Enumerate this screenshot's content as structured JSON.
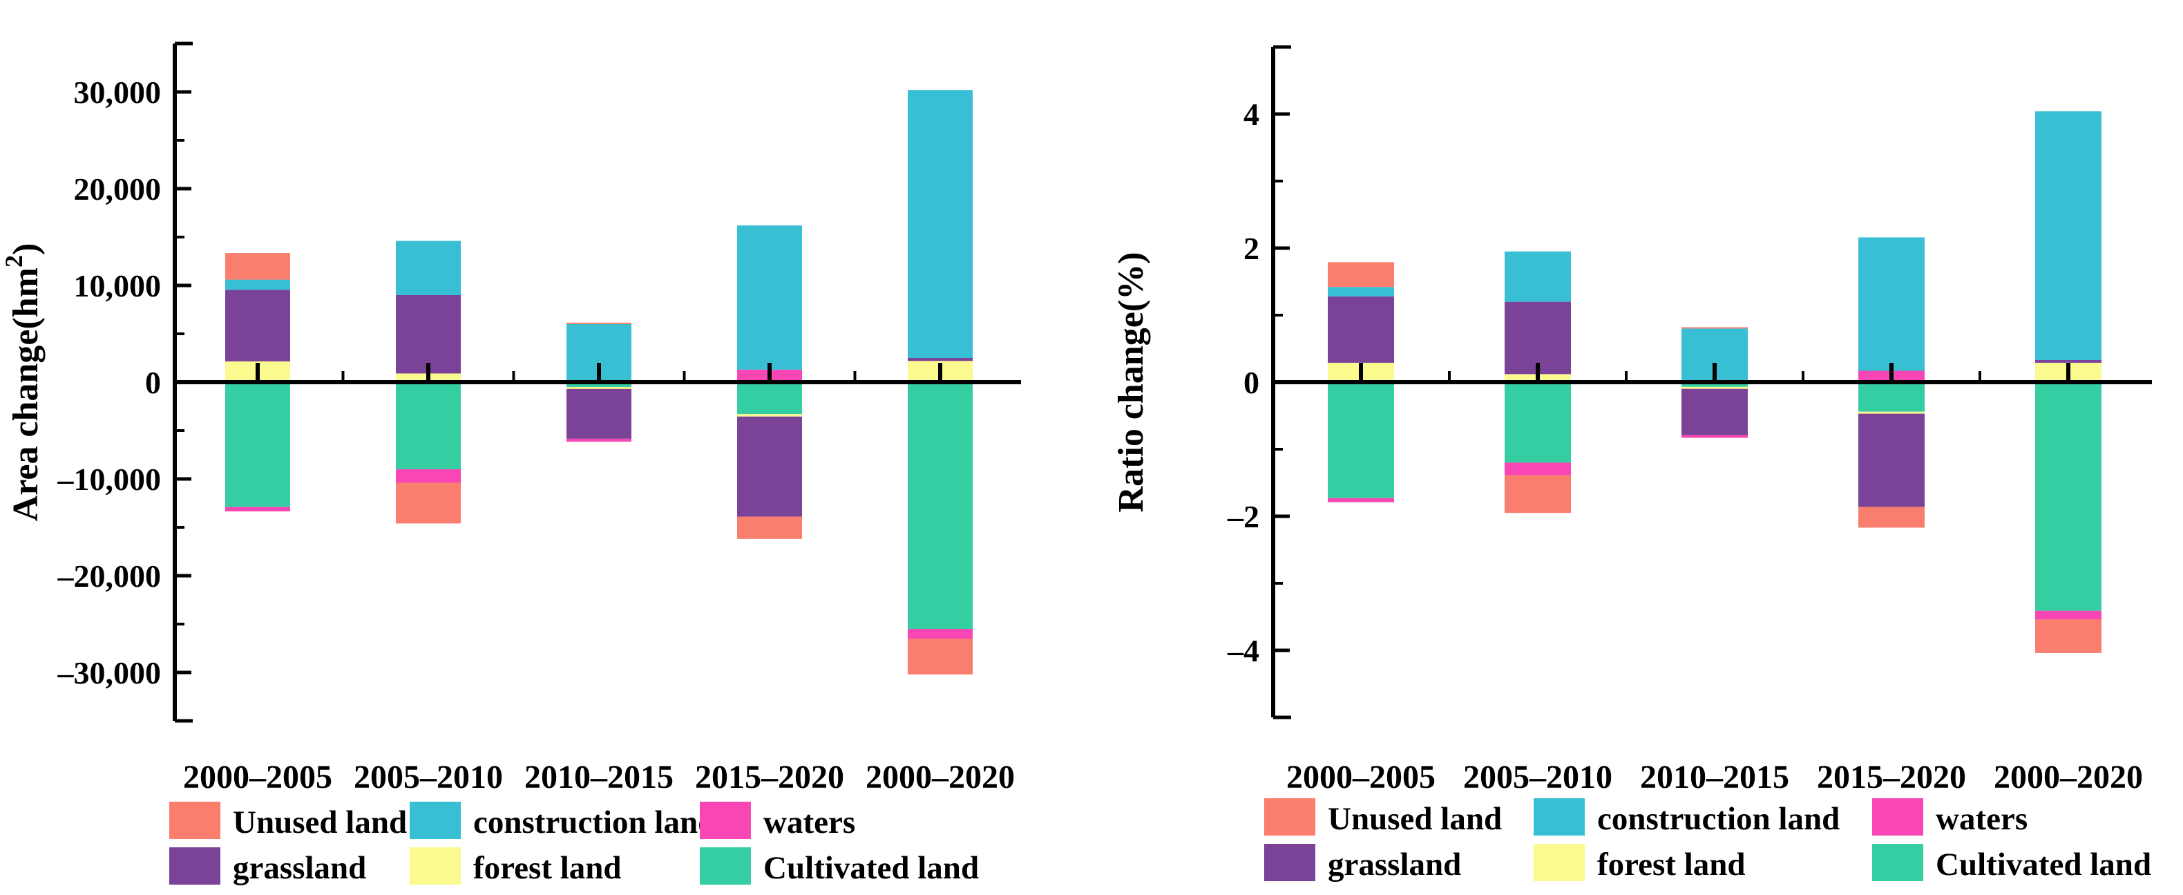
{
  "figure": {
    "background": "#ffffff",
    "axis_color": "#000000",
    "text_color": "#000000"
  },
  "palette": {
    "Unused land": "#F97E6D",
    "construction land": "#38BFD4",
    "waters": "#F846B4",
    "grassland": "#7B4397",
    "forest land": "#FBFA8E",
    "Cultivated land": "#34CEA2"
  },
  "legend": {
    "rows": [
      [
        "Unused land",
        "construction land",
        "waters"
      ],
      [
        "grassland",
        "forest land",
        "Cultivated land"
      ]
    ]
  },
  "chart_data": [
    {
      "type": "bar",
      "stacked": true,
      "title": "",
      "xlabel": "",
      "ylabel": "Area change(hm²)",
      "ylabel_parts": {
        "prefix": "Area change(hm",
        "sup": "2",
        "suffix": ")"
      },
      "categories": [
        "2000–2005",
        "2005–2010",
        "2010–2015",
        "2015–2020",
        "2000–2020"
      ],
      "stack_order": [
        "Cultivated land",
        "forest land",
        "grassland",
        "waters",
        "construction land",
        "Unused land"
      ],
      "series": [
        {
          "name": "Cultivated land",
          "values": [
            -12900,
            -9000,
            -500,
            -3300,
            -25500
          ]
        },
        {
          "name": "forest land",
          "values": [
            2150,
            900,
            -200,
            -250,
            2200
          ]
        },
        {
          "name": "grassland",
          "values": [
            7400,
            8100,
            -5150,
            -10350,
            300
          ]
        },
        {
          "name": "waters",
          "values": [
            -450,
            -1400,
            -300,
            1300,
            -1000
          ]
        },
        {
          "name": "construction land",
          "values": [
            1050,
            5600,
            6000,
            14900,
            27700
          ]
        },
        {
          "name": "Unused land",
          "values": [
            2750,
            -4200,
            150,
            -2300,
            -3700
          ]
        }
      ],
      "ylim": [
        -35000,
        35000
      ],
      "y_major_step": 10000,
      "y_minor_step": 5000,
      "y_ticks": [
        {
          "value": 30000,
          "label": "30,000"
        },
        {
          "value": 20000,
          "label": "20,000"
        },
        {
          "value": 10000,
          "label": "10,000"
        },
        {
          "value": 0,
          "label": "0"
        },
        {
          "value": -10000,
          "label": "–10,000"
        },
        {
          "value": -20000,
          "label": "–20,000"
        },
        {
          "value": -30000,
          "label": "–30,000"
        }
      ],
      "grid": false,
      "legend_position": "bottom"
    },
    {
      "type": "bar",
      "stacked": true,
      "title": "",
      "xlabel": "",
      "ylabel": "Ratio change(%)",
      "ylabel_parts": {
        "prefix": "Ratio change(%)",
        "sup": "",
        "suffix": ""
      },
      "categories": [
        "2000–2005",
        "2005–2010",
        "2010–2015",
        "2015–2020",
        "2000–2020"
      ],
      "stack_order": [
        "Cultivated land",
        "forest land",
        "grassland",
        "waters",
        "construction land",
        "Unused land"
      ],
      "series": [
        {
          "name": "Cultivated land",
          "values": [
            -1.73,
            -1.2,
            -0.07,
            -0.44,
            -3.41
          ]
        },
        {
          "name": "forest land",
          "values": [
            0.29,
            0.12,
            -0.03,
            -0.03,
            0.29
          ]
        },
        {
          "name": "grassland",
          "values": [
            0.99,
            1.08,
            -0.69,
            -1.39,
            0.04
          ]
        },
        {
          "name": "waters",
          "values": [
            -0.06,
            -0.19,
            -0.04,
            0.17,
            -0.13
          ]
        },
        {
          "name": "construction land",
          "values": [
            0.14,
            0.75,
            0.8,
            1.99,
            3.71
          ]
        },
        {
          "name": "Unused land",
          "values": [
            0.37,
            -0.56,
            0.02,
            -0.31,
            -0.5
          ]
        }
      ],
      "ylim": [
        -5,
        5
      ],
      "y_major_step": 2,
      "y_minor_step": 1,
      "y_ticks": [
        {
          "value": 4,
          "label": "4"
        },
        {
          "value": 2,
          "label": "2"
        },
        {
          "value": 0,
          "label": "0"
        },
        {
          "value": -2,
          "label": "–2"
        },
        {
          "value": -4,
          "label": "–4"
        }
      ],
      "grid": false,
      "legend_position": "bottom"
    }
  ]
}
